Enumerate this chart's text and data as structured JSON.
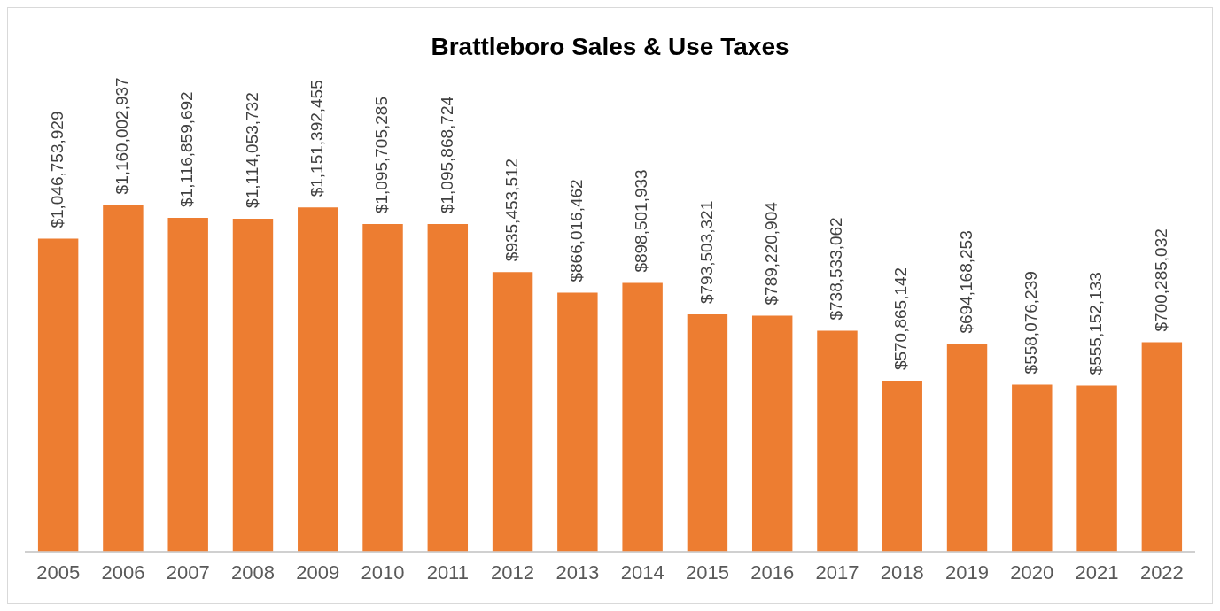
{
  "chart_data": {
    "type": "bar",
    "title": "Brattleboro Sales & Use Taxes",
    "categories": [
      "2005",
      "2006",
      "2007",
      "2008",
      "2009",
      "2010",
      "2011",
      "2012",
      "2013",
      "2014",
      "2015",
      "2016",
      "2017",
      "2018",
      "2019",
      "2020",
      "2021",
      "2022"
    ],
    "values": [
      1046753929,
      1160002937,
      1116859692,
      1114053732,
      1151392455,
      1095705285,
      1095868724,
      935453512,
      866016462,
      898501933,
      793503321,
      789220904,
      738533062,
      570865142,
      694168253,
      558076239,
      555152133,
      700285032
    ],
    "value_labels": [
      "$1,046,753,929",
      "$1,160,002,937",
      "$1,116,859,692",
      "$1,114,053,732",
      "$1,151,392,455",
      "$1,095,705,285",
      "$1,095,868,724",
      "$935,453,512",
      "$866,016,462",
      "$898,501,933",
      "$793,503,321",
      "$789,220,904",
      "$738,533,062",
      "$570,865,142",
      "$694,168,253",
      "$558,076,239",
      "$555,152,133",
      "$700,285,032"
    ],
    "color": "#ed7d31",
    "grid": false,
    "legend": false,
    "tick_labels": "x"
  }
}
